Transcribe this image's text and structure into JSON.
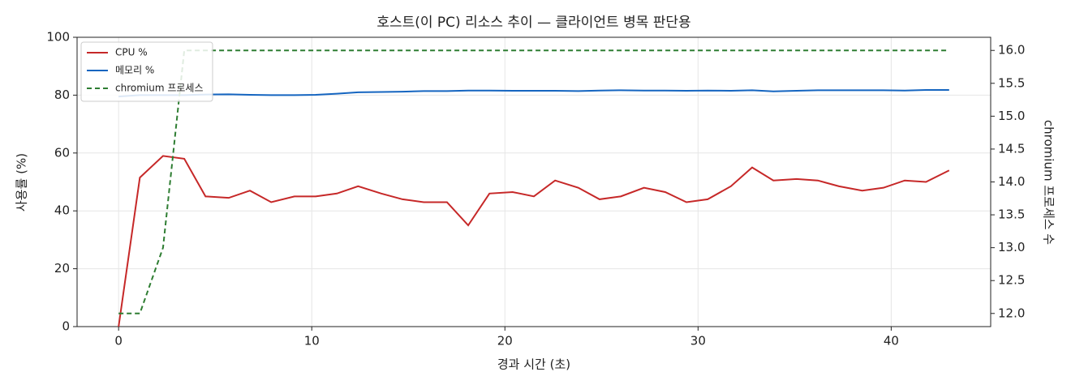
{
  "chart_data": {
    "type": "line",
    "title": "호스트(이 PC) 리소스 추이 — 클라이언트 병목 판단용",
    "x_label": "경과 시간 (초)",
    "y_label": "사용률 (%)",
    "y2_label": "chromium 프로세스 수",
    "x": [
      0,
      1.1,
      2.3,
      3.4,
      4.5,
      5.7,
      6.8,
      7.9,
      9.1,
      10.2,
      11.3,
      12.4,
      13.6,
      14.7,
      15.8,
      17.0,
      18.1,
      19.2,
      20.4,
      21.5,
      22.6,
      23.8,
      24.9,
      26.0,
      27.2,
      28.3,
      29.4,
      30.5,
      31.7,
      32.8,
      33.9,
      35.1,
      36.2,
      37.3,
      38.5,
      39.6,
      40.7,
      41.8,
      43.0
    ],
    "series": [
      {
        "name": "CPU %",
        "color": "#c62828",
        "values": [
          0,
          51.5,
          59,
          58,
          45,
          44.5,
          47,
          43,
          45,
          45,
          46,
          48.5,
          46,
          44,
          43,
          43,
          35,
          46,
          46.5,
          45,
          50.5,
          48,
          44,
          45,
          48,
          46.5,
          43,
          44,
          48.5,
          55,
          50.5,
          51,
          50.5,
          48.5,
          47,
          48,
          50.5,
          50,
          54
        ]
      },
      {
        "name": "메모리 %",
        "color": "#1565c0",
        "values": [
          79.5,
          80,
          80,
          80,
          80.2,
          80.3,
          80.1,
          80,
          80,
          80.1,
          80.5,
          81,
          81.1,
          81.2,
          81.4,
          81.4,
          81.6,
          81.6,
          81.5,
          81.5,
          81.5,
          81.4,
          81.6,
          81.7,
          81.6,
          81.6,
          81.5,
          81.6,
          81.5,
          81.7,
          81.3,
          81.5,
          81.7,
          81.7,
          81.7,
          81.7,
          81.6,
          81.8,
          81.8
        ]
      },
      {
        "name": "chromium 프로세스",
        "color": "#2e7d32",
        "dash": true,
        "axis": "y2",
        "values": [
          12,
          12,
          13,
          16,
          16,
          16,
          16,
          16,
          16,
          16,
          16,
          16,
          16,
          16,
          16,
          16,
          16,
          16,
          16,
          16,
          16,
          16,
          16,
          16,
          16,
          16,
          16,
          16,
          16,
          16,
          16,
          16,
          16,
          16,
          16,
          16,
          16,
          16,
          16
        ]
      }
    ],
    "xlim": [
      -2.15,
      45.15
    ],
    "xticks": [
      0,
      10,
      20,
      30,
      40
    ],
    "ylim": [
      0,
      100
    ],
    "yticks": [
      0,
      20,
      40,
      60,
      80,
      100
    ],
    "y2lim": [
      11.8,
      16.2
    ],
    "y2ticks": [
      {
        "value": 12,
        "label": "12.0"
      },
      {
        "value": 12.5,
        "label": "12.5"
      },
      {
        "value": 13,
        "label": "13.0"
      },
      {
        "value": 13.5,
        "label": "13.5"
      },
      {
        "value": 14,
        "label": "14.0"
      },
      {
        "value": 14.5,
        "label": "14.5"
      },
      {
        "value": 15,
        "label": "15.0"
      },
      {
        "value": 15.5,
        "label": "15.5"
      },
      {
        "value": 16,
        "label": "16.0"
      }
    ],
    "grid": true,
    "legend": "upper-left"
  }
}
